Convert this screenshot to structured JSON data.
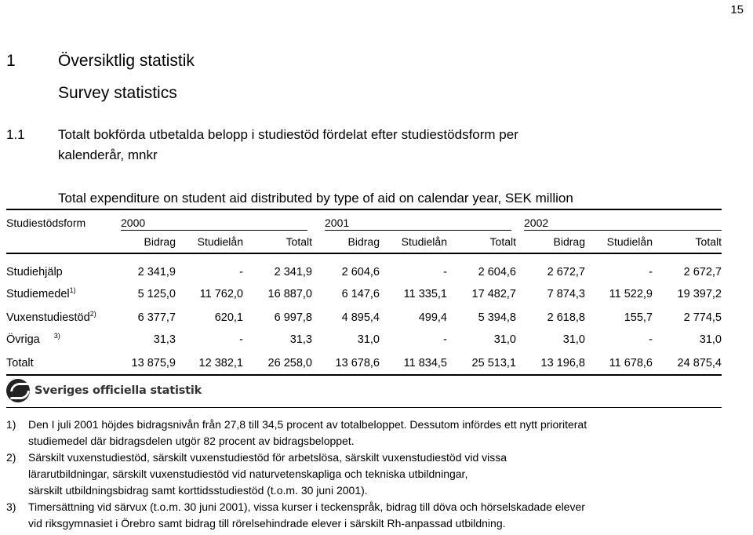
{
  "page_number": "15",
  "heading": {
    "number": "1",
    "title": "Översiktlig statistik",
    "subtitle": "Survey statistics"
  },
  "section": {
    "number": "1.1",
    "title_line1": "Totalt bokförda utbetalda belopp i studiestöd fördelat efter studiestödsform per",
    "title_line2": "kalenderår, mnkr",
    "english": "Total expenditure on student aid distributed by type of aid on calendar year, SEK million"
  },
  "table": {
    "row_header": "Studiestödsform",
    "years": [
      "2000",
      "2001",
      "2002"
    ],
    "subheaders": [
      "Bidrag",
      "Studielån",
      "Totalt"
    ],
    "rows": [
      {
        "label": "Studiehjälp",
        "note": "",
        "values": [
          "2 341,9",
          "-",
          "2 341,9",
          "2 604,6",
          "-",
          "2 604,6",
          "2 672,7",
          "-",
          "2 672,7"
        ]
      },
      {
        "label": "Studiemedel",
        "note": "1)",
        "values": [
          "5 125,0",
          "11 762,0",
          "16 887,0",
          "6 147,6",
          "11 335,1",
          "17 482,7",
          "7 874,3",
          "11 522,9",
          "19 397,2"
        ]
      },
      {
        "label": "Vuxenstudiestöd",
        "note": "2)",
        "values": [
          "6 377,7",
          "620,1",
          "6 997,8",
          "4 895,4",
          "499,4",
          "5 394,8",
          "2 618,8",
          "155,7",
          "2 774,5"
        ]
      },
      {
        "label": "Övriga",
        "note": "3)",
        "values": [
          "31,3",
          "-",
          "31,3",
          "31,0",
          "-",
          "31,0",
          "31,0",
          "-",
          "31,0"
        ]
      },
      {
        "label": "Totalt",
        "note": "",
        "values": [
          "13 875,9",
          "12 382,1",
          "26 258,0",
          "13 678,6",
          "11 834,5",
          "25 513,1",
          "13 196,8",
          "11 678,6",
          "24 875,4"
        ]
      }
    ]
  },
  "logo_text": "Sveriges officiella statistik",
  "footnotes": [
    {
      "marker": "1)",
      "lines": [
        "Den I juli 2001 höjdes bidragsnivån från 27,8 till 34,5 procent av totalbeloppet. Dessutom infördes ett nytt prioriterat",
        "studiemedel där bidragsdelen utgör 82 procent av bidragsbeloppet."
      ]
    },
    {
      "marker": "2)",
      "lines": [
        "Särskilt vuxenstudiestöd, särskilt vuxenstudiestöd för arbetslösa, särskilt vuxenstudiestöd vid vissa",
        "lärarutbildningar, särskilt vuxenstudiestöd vid naturvetenskapliga och tekniska utbildningar,",
        "särskilt utbildningsbidrag samt korttidsstudiestöd (t.o.m. 30 juni 2001)."
      ]
    },
    {
      "marker": "3)",
      "lines": [
        "Timersättning vid särvux (t.o.m. 30 juni 2001), vissa kurser i teckenspråk, bidrag till döva och hörselskadade elever",
        "vid riksgymnasiet i Örebro samt bidrag till rörelsehindrade elever i särskilt Rh-anpassad utbildning."
      ]
    }
  ]
}
